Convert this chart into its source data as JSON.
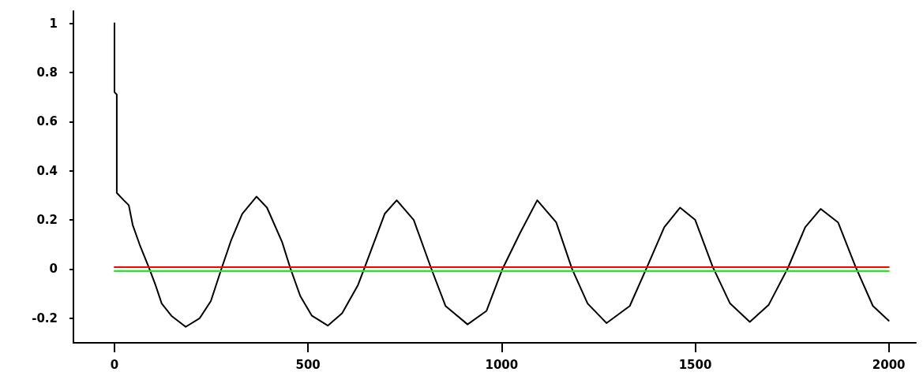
{
  "chart_data": {
    "type": "line",
    "xlim": [
      -106,
      2070
    ],
    "ylim": [
      -0.3,
      1.05
    ],
    "xticks": [
      0,
      500,
      1000,
      1500,
      2000
    ],
    "yticks": [
      -0.2,
      0,
      0.2,
      0.4,
      0.6,
      0.8,
      1
    ],
    "grid": false,
    "marker": "none",
    "line_style": "solid",
    "series": [
      {
        "color": "#000000",
        "x": [
          0,
          0,
          6,
          6,
          24,
          37,
          47,
          65,
          88,
          106,
          122,
          147,
          184,
          220,
          249,
          276,
          302,
          330,
          367,
          394,
          433,
          455,
          480,
          510,
          551,
          588,
          629,
          647,
          698,
          729,
          773,
          818,
          855,
          912,
          961,
          1002,
          1047,
          1092,
          1141,
          1182,
          1222,
          1271,
          1331,
          1376,
          1420,
          1461,
          1500,
          1545,
          1590,
          1641,
          1690,
          1739,
          1784,
          1824,
          1869,
          1914,
          1959,
          2000
        ],
        "values": [
          1,
          0.72,
          0.71,
          0.31,
          0.28,
          0.26,
          0.18,
          0.1,
          0.01,
          -0.065,
          -0.14,
          -0.19,
          -0.235,
          -0.2,
          -0.13,
          0,
          0.12,
          0.225,
          0.295,
          0.25,
          0.11,
          0,
          -0.11,
          -0.19,
          -0.23,
          -0.18,
          -0.065,
          0.01,
          0.225,
          0.28,
          0.2,
          0.003,
          -0.15,
          -0.225,
          -0.17,
          0,
          0.145,
          0.28,
          0.19,
          0,
          -0.14,
          -0.22,
          -0.15,
          0.01,
          0.17,
          0.25,
          0.2,
          0.01,
          -0.14,
          -0.215,
          -0.145,
          0.003,
          0.17,
          0.245,
          0.19,
          0.01,
          -0.15,
          -0.21
        ]
      },
      {
        "color": "#ff0000",
        "x": [
          0,
          2000
        ],
        "values": [
          0.008,
          0.008
        ]
      },
      {
        "color": "#00ff00",
        "x": [
          0,
          2000
        ],
        "values": [
          -0.008,
          -0.008
        ]
      }
    ]
  }
}
